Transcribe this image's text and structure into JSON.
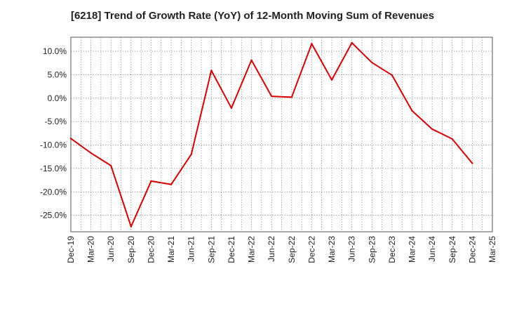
{
  "chart_data": {
    "type": "line",
    "title": "[6218]  Trend of Growth Rate (YoY) of 12-Month Moving Sum of Revenues",
    "xlabel": "",
    "ylabel": "",
    "x_ticks": [
      "Dec-19",
      "Mar-20",
      "Jun-20",
      "Sep-20",
      "Dec-20",
      "Mar-21",
      "Jun-21",
      "Sep-21",
      "Dec-21",
      "Mar-22",
      "Jun-22",
      "Sep-22",
      "Dec-22",
      "Mar-23",
      "Jun-23",
      "Sep-23",
      "Dec-23",
      "Mar-24",
      "Jun-24",
      "Sep-24",
      "Dec-24",
      "Mar-25"
    ],
    "y_ticks": [
      10,
      5,
      0,
      -5,
      -10,
      -15,
      -20,
      -25
    ],
    "y_tick_labels": [
      "10.0%",
      "5.0%",
      "0.0%",
      "-5.0%",
      "-10.0%",
      "-15.0%",
      "-20.0%",
      "-25.0%"
    ],
    "ylim": [
      -28.5,
      13
    ],
    "grid": true,
    "line_color": "#dd0000",
    "series": [
      {
        "x": [
          "Dec-19",
          "Mar-20",
          "Jun-20",
          "Sep-20",
          "Dec-20",
          "Mar-21",
          "Jun-21",
          "Sep-21",
          "Dec-21",
          "Mar-22",
          "Jun-22",
          "Sep-22",
          "Dec-22",
          "Mar-23",
          "Jun-23",
          "Sep-23",
          "Dec-23",
          "Mar-24",
          "Jun-24",
          "Sep-24",
          "Dec-24"
        ],
        "values": [
          -8.6,
          -11.7,
          -14.4,
          -27.4,
          -17.7,
          -18.4,
          -12.0,
          5.9,
          -2.1,
          8.1,
          0.4,
          0.2,
          11.6,
          3.9,
          11.8,
          7.6,
          4.9,
          -2.7,
          -6.6,
          -8.7,
          -13.9
        ]
      }
    ]
  }
}
